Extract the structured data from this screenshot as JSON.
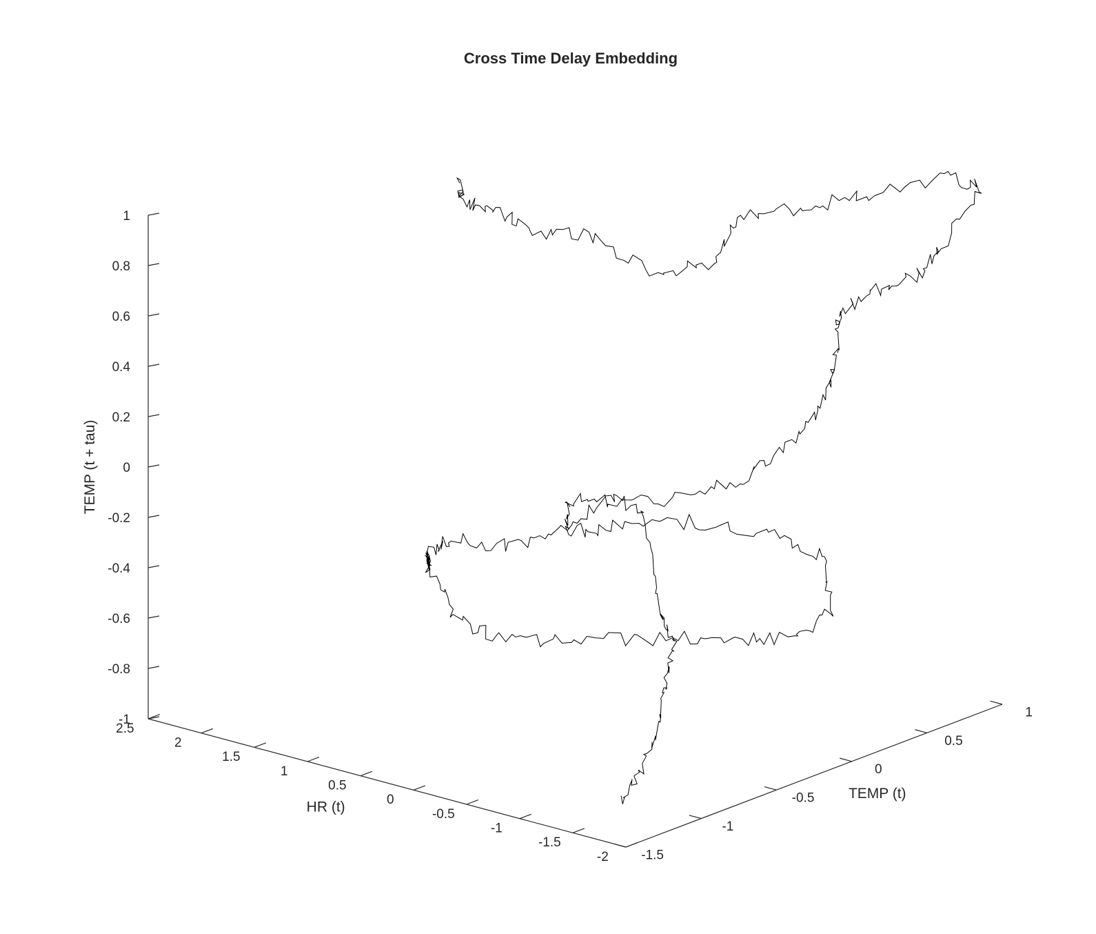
{
  "chart_data": {
    "type": "line3d",
    "title": "Cross Time Delay Embedding",
    "xlabel": "HR (t)",
    "ylabel": "TEMP (t)",
    "zlabel": "TEMP (t + tau)",
    "xlim": [
      -2,
      2.5
    ],
    "ylim": [
      -1.5,
      1
    ],
    "zlim": [
      -1,
      1
    ],
    "xticks": [
      -2,
      -1.5,
      -1,
      -0.5,
      0,
      0.5,
      1,
      1.5,
      2,
      2.5
    ],
    "xtick_labels": [
      "-2",
      "-1.5",
      "-1",
      "-0.5",
      "0",
      "0.5",
      "1",
      "1.5",
      "2",
      "2.5"
    ],
    "yticks": [
      -1.5,
      -1,
      -0.5,
      0,
      0.5,
      1
    ],
    "ytick_labels": [
      "-1.5",
      "-1",
      "-0.5",
      "0",
      "0.5",
      "1"
    ],
    "zticks": [
      -1,
      -0.8,
      -0.6,
      -0.4,
      -0.2,
      0,
      0.2,
      0.4,
      0.6,
      0.8,
      1
    ],
    "ztick_labels": [
      "-1",
      "-0.8",
      "-0.6",
      "-0.4",
      "-0.2",
      "0",
      "0.2",
      "0.4",
      "0.6",
      "0.8",
      "1"
    ],
    "grid": false,
    "series": [
      {
        "points": [
          [
            -1.45,
            -1.15,
            -0.95
          ],
          [
            -1.35,
            -0.95,
            -0.9
          ],
          [
            -1.1,
            -0.65,
            -0.82
          ],
          [
            -0.75,
            -0.35,
            -0.74
          ],
          [
            -0.4,
            -0.05,
            -0.68
          ],
          [
            -0.05,
            0.1,
            -0.64
          ],
          [
            0.6,
            0.45,
            -0.4
          ],
          [
            1.3,
            0.7,
            -0.48
          ],
          [
            1.9,
            0.8,
            -0.72
          ],
          [
            2.15,
            0.6,
            -0.75
          ],
          [
            2.0,
            0.15,
            -0.6
          ],
          [
            1.7,
            -0.2,
            -0.55
          ],
          [
            1.35,
            -0.45,
            -0.5
          ],
          [
            1.0,
            -0.7,
            -0.38
          ],
          [
            0.6,
            -0.8,
            -0.55
          ],
          [
            0.2,
            -0.75,
            -0.6
          ],
          [
            -0.25,
            -0.6,
            -0.58
          ],
          [
            -0.7,
            -0.35,
            -0.58
          ],
          [
            -1.0,
            -0.1,
            -0.6
          ],
          [
            -1.15,
            0.2,
            -0.66
          ],
          [
            -1.1,
            0.5,
            -0.62
          ],
          [
            -0.8,
            0.65,
            -0.46
          ],
          [
            -0.4,
            0.55,
            -0.4
          ],
          [
            -0.1,
            0.25,
            -0.32
          ],
          [
            0.1,
            -0.1,
            -0.28
          ],
          [
            0.05,
            -0.45,
            -0.22
          ],
          [
            -0.1,
            -0.55,
            -0.05
          ],
          [
            -0.4,
            -0.45,
            -0.05
          ],
          [
            -0.75,
            -0.2,
            -0.05
          ],
          [
            -0.95,
            0.05,
            0.0
          ],
          [
            -1.05,
            0.3,
            0.1
          ],
          [
            -1.0,
            0.55,
            0.22
          ],
          [
            -0.8,
            0.75,
            0.33
          ],
          [
            -0.75,
            0.8,
            0.45
          ],
          [
            -0.85,
            0.95,
            0.52
          ],
          [
            -1.1,
            1.05,
            0.58
          ],
          [
            -1.2,
            1.15,
            0.68
          ],
          [
            -1.05,
            1.55,
            0.82
          ],
          [
            -0.6,
            1.6,
            0.8
          ],
          [
            -0.2,
            1.35,
            0.74
          ],
          [
            0.0,
            1.1,
            0.72
          ],
          [
            0.05,
            0.7,
            0.78
          ],
          [
            -0.05,
            0.45,
            0.65
          ],
          [
            0.05,
            0.15,
            0.67
          ],
          [
            0.3,
            -0.1,
            0.85
          ],
          [
            0.5,
            -0.35,
            0.9
          ],
          [
            0.6,
            -0.55,
            1.02
          ],
          [
            0.75,
            -0.65,
            1.06
          ],
          [
            0.7,
            -0.7,
            1.15
          ]
        ]
      }
    ]
  }
}
